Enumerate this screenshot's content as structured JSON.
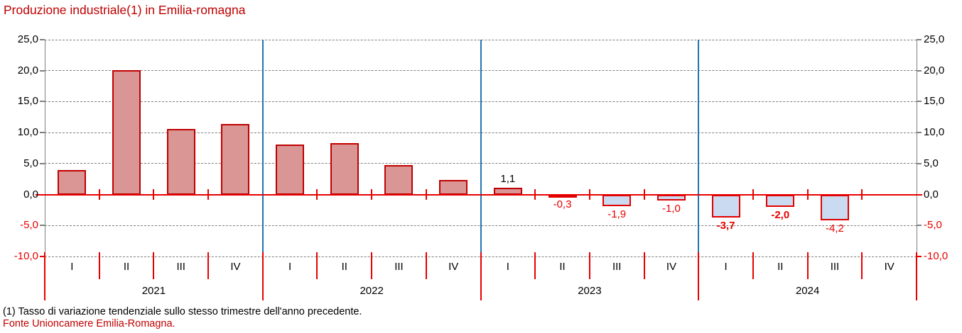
{
  "title": "Produzione industriale(1) in Emilia-romagna",
  "footnote": "(1) Tasso di variazione tendenziale sullo stesso trimestre dell'anno precedente.",
  "source": "Fonte Unioncamere Emilia-Romagna.",
  "colors": {
    "title": "#c00000",
    "source": "#c00000",
    "bright_red": "#e80000",
    "dark_red": "#c00000",
    "positive_fill": "#d99694",
    "positive_border": "#c00000",
    "negative_fill": "#c9daf1",
    "negative_border": "#e00000",
    "gridline_gray": "#7f7f7f",
    "axis_gray": "#7f7f7f",
    "year_separator_blue": "#2074b2",
    "label_black": "#000000"
  },
  "chart_data": {
    "type": "bar",
    "title": "Produzione industriale(1) in Emilia-romagna",
    "ylabel": "",
    "xlabel": "",
    "ylim": [
      -10,
      25
    ],
    "ytick_step": 5,
    "ytick_values": [
      25,
      20,
      15,
      10,
      5,
      0,
      -5,
      -10
    ],
    "ytick_labels": [
      "25,0",
      "20,0",
      "15,0",
      "10,0",
      "5,0",
      "0,0",
      "-5,0",
      "-10,0"
    ],
    "grid": true,
    "legend": false,
    "groups": [
      {
        "year": "2021",
        "quarters": [
          "I",
          "II",
          "III",
          "IV"
        ],
        "values": [
          3.9,
          20.1,
          10.6,
          11.4
        ],
        "labels": [
          null,
          null,
          null,
          null
        ],
        "bold": [
          false,
          false,
          false,
          false
        ]
      },
      {
        "year": "2022",
        "quarters": [
          "I",
          "II",
          "III",
          "IV"
        ],
        "values": [
          8.1,
          8.3,
          4.8,
          2.4
        ],
        "labels": [
          null,
          null,
          null,
          null
        ],
        "bold": [
          false,
          false,
          false,
          false
        ]
      },
      {
        "year": "2023",
        "quarters": [
          "I",
          "II",
          "III",
          "IV"
        ],
        "values": [
          1.1,
          -0.3,
          -1.9,
          -1.0
        ],
        "labels": [
          "1,1",
          "-0,3",
          "-1,9",
          "-1,0"
        ],
        "bold": [
          false,
          false,
          false,
          false
        ]
      },
      {
        "year": "2024",
        "quarters": [
          "I",
          "II",
          "III",
          "IV"
        ],
        "values": [
          -3.7,
          -2.0,
          -4.2,
          null
        ],
        "labels": [
          "-3,7",
          "-2,0",
          "-4,2",
          null
        ],
        "bold": [
          true,
          true,
          false,
          false
        ]
      }
    ]
  }
}
